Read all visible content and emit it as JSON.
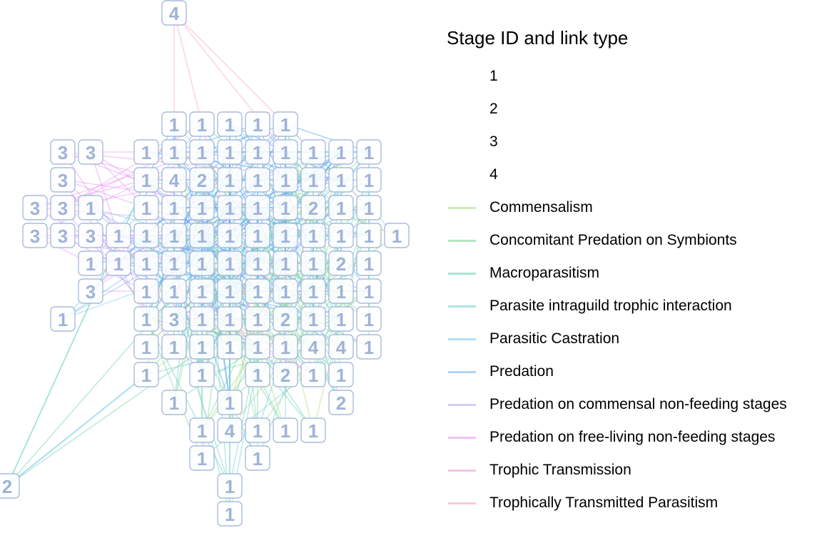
{
  "legend": {
    "title": "Stage ID and link type",
    "stages": [
      "1",
      "2",
      "3",
      "4"
    ],
    "link_types": [
      {
        "label": "Commensalism",
        "color": "#a6dc86"
      },
      {
        "label": "Concomitant Predation on Symbionts",
        "color": "#7fd59a"
      },
      {
        "label": "Macroparasitism",
        "color": "#6fd3b0"
      },
      {
        "label": "Parasite intraguild trophic interaction",
        "color": "#74d2d6"
      },
      {
        "label": "Parasitic Castration",
        "color": "#7ccdee"
      },
      {
        "label": "Predation",
        "color": "#7ab8f8"
      },
      {
        "label": "Predation on commensal non-feeding stages",
        "color": "#b8acf6"
      },
      {
        "label": "Predation on free-living non-feeding stages",
        "color": "#e79af2"
      },
      {
        "label": "Trophic Transmission",
        "color": "#f09ad8"
      },
      {
        "label": "Trophically Transmitted Parasitism",
        "color": "#f6a2c4"
      }
    ]
  },
  "node_style": {
    "border": "#a9bbdb",
    "text": "#9fb3d6"
  },
  "nodes": [
    "4",
    "1",
    "1",
    "3",
    "1",
    "3",
    "1",
    "1",
    "3",
    "3",
    "3",
    "3",
    "3",
    "1",
    "1",
    "1",
    "3",
    "3",
    "1",
    "1",
    "1",
    "1",
    "1",
    "2",
    "2",
    "2",
    "1",
    "1",
    "1",
    "1",
    "2",
    "1",
    "1",
    "4",
    "1",
    "1",
    "1",
    "1",
    "1",
    "1",
    "1",
    "4",
    "1",
    "1",
    "1",
    "1",
    "3",
    "1",
    "1",
    "1",
    "1",
    "1",
    "1",
    "1",
    "1",
    "1",
    "1",
    "1",
    "1",
    "1",
    "1",
    "1",
    "1",
    "1",
    "1",
    "1",
    "1",
    "1",
    "1",
    "1",
    "1",
    "1",
    "1",
    "1",
    "2",
    "1",
    "1",
    "1",
    "1",
    "1",
    "4",
    "1",
    "1",
    "1",
    "1",
    "1",
    "2",
    "1",
    "1",
    "1",
    "1",
    "1",
    "1",
    "1",
    "2",
    "1",
    "1",
    "1",
    "1",
    "1",
    "1",
    "1",
    "1",
    "1",
    "4",
    "1",
    "1",
    "1",
    "1",
    "1",
    "1",
    "1"
  ]
}
